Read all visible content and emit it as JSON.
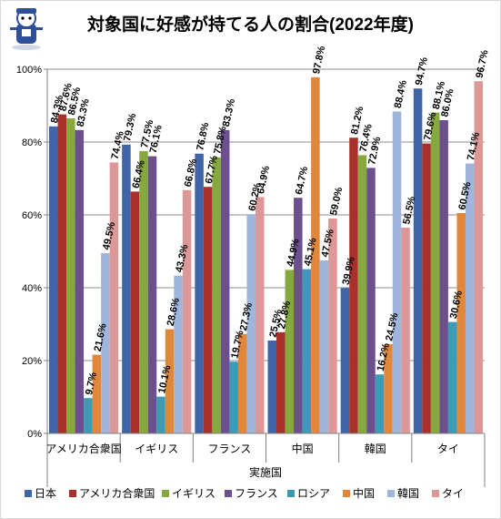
{
  "chart_data": {
    "type": "bar",
    "title": "対象国に好感が持てる人の割合(2022年度)",
    "xlabel": "実施国",
    "ylabel": "",
    "ylim": [
      0,
      100
    ],
    "yticks": [
      "0%",
      "20%",
      "40%",
      "60%",
      "80%",
      "100%"
    ],
    "grid": true,
    "legend_position": "bottom",
    "categories": [
      "アメリカ合衆国",
      "イギリス",
      "フランス",
      "中国",
      "韓国",
      "タイ"
    ],
    "series": [
      {
        "name": "日本",
        "color": "#3f64a8",
        "values": [
          84.3,
          79.3,
          76.8,
          25.5,
          39.9,
          94.7
        ]
      },
      {
        "name": "アメリカ合衆国",
        "color": "#a7322c",
        "values": [
          87.6,
          66.4,
          67.7,
          27.8,
          81.2,
          79.6
        ]
      },
      {
        "name": "イギリス",
        "color": "#86a93e",
        "values": [
          86.5,
          77.5,
          75.8,
          44.9,
          76.4,
          88.1
        ]
      },
      {
        "name": "フランス",
        "color": "#6b4f8e",
        "values": [
          83.3,
          76.1,
          83.3,
          64.7,
          72.9,
          86.0
        ]
      },
      {
        "name": "ロシア",
        "color": "#3d9bb5",
        "values": [
          9.7,
          10.1,
          19.7,
          45.1,
          16.2,
          30.6
        ]
      },
      {
        "name": "中国",
        "color": "#e1873a",
        "values": [
          21.6,
          28.6,
          27.3,
          97.8,
          24.5,
          60.5
        ]
      },
      {
        "name": "韓国",
        "color": "#9fb5dc",
        "values": [
          49.5,
          43.3,
          60.2,
          47.5,
          88.4,
          74.1
        ]
      },
      {
        "name": "タイ",
        "color": "#db9896",
        "values": [
          74.4,
          66.8,
          64.9,
          59.0,
          56.5,
          96.7
        ]
      }
    ],
    "value_labels": [
      [
        "84.3%",
        "87.6%",
        "86.5%",
        "83.3%",
        "9.7%",
        "21.6%",
        "49.5%",
        "74.4%"
      ],
      [
        "79.3%",
        "66.4%",
        "77.5%",
        "76.1%",
        "10.1%",
        "28.6%",
        "43.3%",
        "66.8%"
      ],
      [
        "76.8%",
        "67.7%",
        "75.8%",
        "83.3%",
        "19.7%",
        "27.3%",
        "60.2%",
        "64.9%"
      ],
      [
        "25.5%",
        "27.8%",
        "44.9%",
        "64.7%",
        "45.1%",
        "97.8%",
        "47.5%",
        "59.0%"
      ],
      [
        "39.9%",
        "81.2%",
        "76.4%",
        "72.9%",
        "16.2%",
        "24.5%",
        "88.4%",
        "56.5%"
      ],
      [
        "94.7%",
        "79.6%",
        "88.1%",
        "86.0%",
        "30.6%",
        "60.5%",
        "74.1%",
        "96.7%"
      ]
    ]
  }
}
